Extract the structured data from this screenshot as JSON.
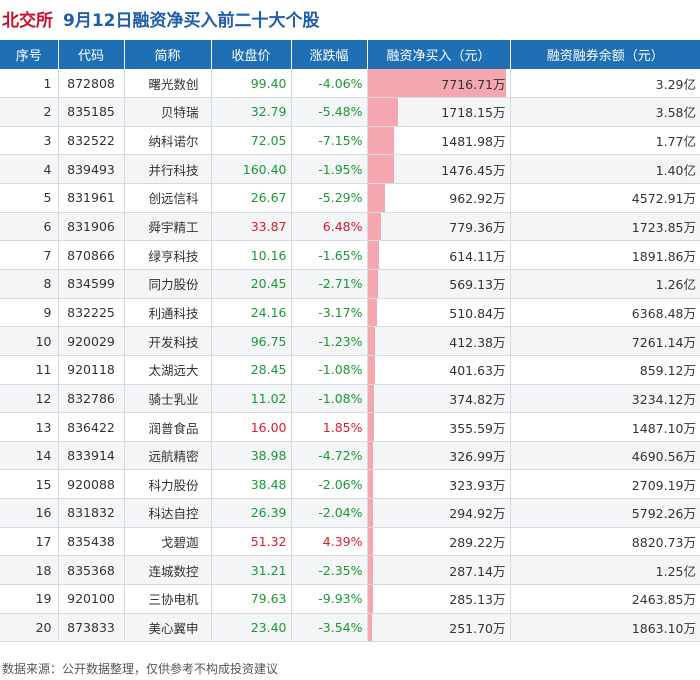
{
  "header": {
    "exchange": "北交所",
    "title": "9月12日融资净买入前二十大个股"
  },
  "table": {
    "columns": [
      "序号",
      "代码",
      "简称",
      "收盘价",
      "涨跌幅",
      "融资净买入（元）",
      "融资融券余额（元）"
    ],
    "rows": [
      {
        "rank": "1",
        "code": "872808",
        "name": "曙光数创",
        "price": "99.40",
        "change": "-4.06%",
        "dir": "down",
        "net": "7716.71万",
        "net_value": 7716.71,
        "balance": "3.29亿"
      },
      {
        "rank": "2",
        "code": "835185",
        "name": "贝特瑞",
        "price": "32.79",
        "change": "-5.48%",
        "dir": "down",
        "net": "1718.15万",
        "net_value": 1718.15,
        "balance": "3.58亿"
      },
      {
        "rank": "3",
        "code": "832522",
        "name": "纳科诺尔",
        "price": "72.05",
        "change": "-7.15%",
        "dir": "down",
        "net": "1481.98万",
        "net_value": 1481.98,
        "balance": "1.77亿"
      },
      {
        "rank": "4",
        "code": "839493",
        "name": "并行科技",
        "price": "160.40",
        "change": "-1.95%",
        "dir": "down",
        "net": "1476.45万",
        "net_value": 1476.45,
        "balance": "1.40亿"
      },
      {
        "rank": "5",
        "code": "831961",
        "name": "创远信科",
        "price": "26.67",
        "change": "-5.29%",
        "dir": "down",
        "net": "962.92万",
        "net_value": 962.92,
        "balance": "4572.91万"
      },
      {
        "rank": "6",
        "code": "831906",
        "name": "舜宇精工",
        "price": "33.87",
        "change": "6.48%",
        "dir": "up",
        "net": "779.36万",
        "net_value": 779.36,
        "balance": "1723.85万"
      },
      {
        "rank": "7",
        "code": "870866",
        "name": "绿亨科技",
        "price": "10.16",
        "change": "-1.65%",
        "dir": "down",
        "net": "614.11万",
        "net_value": 614.11,
        "balance": "1891.86万"
      },
      {
        "rank": "8",
        "code": "834599",
        "name": "同力股份",
        "price": "20.45",
        "change": "-2.71%",
        "dir": "down",
        "net": "569.13万",
        "net_value": 569.13,
        "balance": "1.26亿"
      },
      {
        "rank": "9",
        "code": "832225",
        "name": "利通科技",
        "price": "24.16",
        "change": "-3.17%",
        "dir": "down",
        "net": "510.84万",
        "net_value": 510.84,
        "balance": "6368.48万"
      },
      {
        "rank": "10",
        "code": "920029",
        "name": "开发科技",
        "price": "96.75",
        "change": "-1.23%",
        "dir": "down",
        "net": "412.38万",
        "net_value": 412.38,
        "balance": "7261.14万"
      },
      {
        "rank": "11",
        "code": "920118",
        "name": "太湖远大",
        "price": "28.45",
        "change": "-1.08%",
        "dir": "down",
        "net": "401.63万",
        "net_value": 401.63,
        "balance": "859.12万"
      },
      {
        "rank": "12",
        "code": "832786",
        "name": "骑士乳业",
        "price": "11.02",
        "change": "-1.08%",
        "dir": "down",
        "net": "374.82万",
        "net_value": 374.82,
        "balance": "3234.12万"
      },
      {
        "rank": "13",
        "code": "836422",
        "name": "润普食品",
        "price": "16.00",
        "change": "1.85%",
        "dir": "up",
        "net": "355.59万",
        "net_value": 355.59,
        "balance": "1487.10万"
      },
      {
        "rank": "14",
        "code": "833914",
        "name": "远航精密",
        "price": "38.98",
        "change": "-4.72%",
        "dir": "down",
        "net": "326.99万",
        "net_value": 326.99,
        "balance": "4690.56万"
      },
      {
        "rank": "15",
        "code": "920088",
        "name": "科力股份",
        "price": "38.48",
        "change": "-2.06%",
        "dir": "down",
        "net": "323.93万",
        "net_value": 323.93,
        "balance": "2709.19万"
      },
      {
        "rank": "16",
        "code": "831832",
        "name": "科达自控",
        "price": "26.39",
        "change": "-2.04%",
        "dir": "down",
        "net": "294.92万",
        "net_value": 294.92,
        "balance": "5792.26万"
      },
      {
        "rank": "17",
        "code": "835438",
        "name": "戈碧迦",
        "price": "51.32",
        "change": "4.39%",
        "dir": "up",
        "net": "289.22万",
        "net_value": 289.22,
        "balance": "8820.73万"
      },
      {
        "rank": "18",
        "code": "835368",
        "name": "连城数控",
        "price": "31.21",
        "change": "-2.35%",
        "dir": "down",
        "net": "287.14万",
        "net_value": 287.14,
        "balance": "1.25亿"
      },
      {
        "rank": "19",
        "code": "920100",
        "name": "三协电机",
        "price": "79.63",
        "change": "-9.93%",
        "dir": "down",
        "net": "285.13万",
        "net_value": 285.13,
        "balance": "2463.85万"
      },
      {
        "rank": "20",
        "code": "873833",
        "name": "美心翼申",
        "price": "23.40",
        "change": "-3.54%",
        "dir": "down",
        "net": "251.70万",
        "net_value": 251.7,
        "balance": "1863.10万"
      }
    ]
  },
  "colors": {
    "up": "#e0182d",
    "down": "#1a9a35",
    "header_bg": "#1f6fb5",
    "bar": "#f4a7ae",
    "title_red": "#c8102e",
    "title_blue": "#1f5fa8"
  },
  "footer": {
    "source": "数据来源：公开数据整理，仅供参考不构成投资建议"
  }
}
